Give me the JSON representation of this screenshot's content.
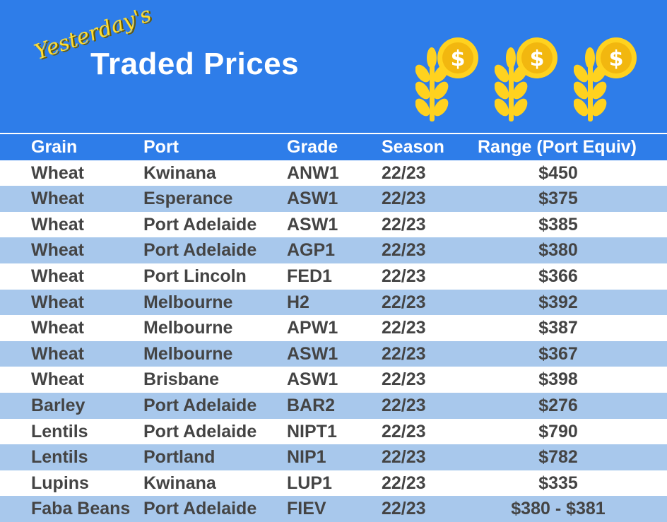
{
  "header": {
    "subtitle": "Yesterday's",
    "title": "Traded Prices"
  },
  "icons": [
    "wheat-coin-icon",
    "wheat-coin-icon",
    "wheat-coin-icon"
  ],
  "colors": {
    "banner": "#2e7de9",
    "alt_row": "#a8c8ec",
    "yellow": "#ffdd33"
  },
  "table": {
    "columns": [
      "Grain",
      "Port",
      "Grade",
      "Season",
      "Range (Port Equiv)"
    ],
    "rows": [
      [
        "Wheat",
        "Kwinana",
        "ANW1",
        "22/23",
        "$450"
      ],
      [
        "Wheat",
        "Esperance",
        "ASW1",
        "22/23",
        "$375"
      ],
      [
        "Wheat",
        "Port Adelaide",
        "ASW1",
        "22/23",
        "$385"
      ],
      [
        "Wheat",
        "Port Adelaide",
        "AGP1",
        "22/23",
        "$380"
      ],
      [
        "Wheat",
        "Port Lincoln",
        "FED1",
        "22/23",
        "$366"
      ],
      [
        "Wheat",
        "Melbourne",
        "H2",
        "22/23",
        "$392"
      ],
      [
        "Wheat",
        "Melbourne",
        "APW1",
        "22/23",
        "$387"
      ],
      [
        "Wheat",
        "Melbourne",
        "ASW1",
        "22/23",
        "$367"
      ],
      [
        "Wheat",
        "Brisbane",
        "ASW1",
        "22/23",
        "$398"
      ],
      [
        "Barley",
        "Port Adelaide",
        "BAR2",
        "22/23",
        "$276"
      ],
      [
        "Lentils",
        "Port Adelaide",
        "NIPT1",
        "22/23",
        "$790"
      ],
      [
        "Lentils",
        "Portland",
        "NIP1",
        "22/23",
        "$782"
      ],
      [
        "Lupins",
        "Kwinana",
        "LUP1",
        "22/23",
        "$335"
      ],
      [
        "Faba Beans",
        "Port Adelaide",
        "FIEV",
        "22/23",
        "$380 - $381"
      ]
    ]
  }
}
